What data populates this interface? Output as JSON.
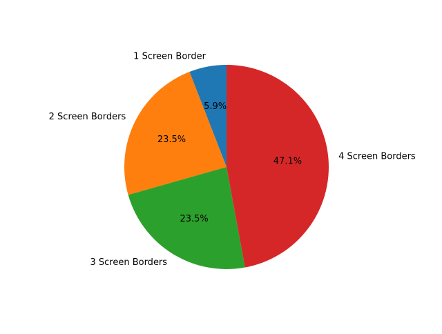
{
  "chart_data": {
    "type": "pie",
    "title": "",
    "slices": [
      {
        "label": "1 Screen Border",
        "value": 5.9,
        "pct_label": "5.9%",
        "color": "#1f77b4"
      },
      {
        "label": "2 Screen Borders",
        "value": 23.5,
        "pct_label": "23.5%",
        "color": "#ff7f0e"
      },
      {
        "label": "3 Screen Borders",
        "value": 23.5,
        "pct_label": "23.5%",
        "color": "#2ca02c"
      },
      {
        "label": "4 Screen Borders",
        "value": 47.1,
        "pct_label": "47.1%",
        "color": "#d62728"
      }
    ],
    "start_angle_deg": 90,
    "direction": "counterclockwise",
    "legend": "none"
  }
}
